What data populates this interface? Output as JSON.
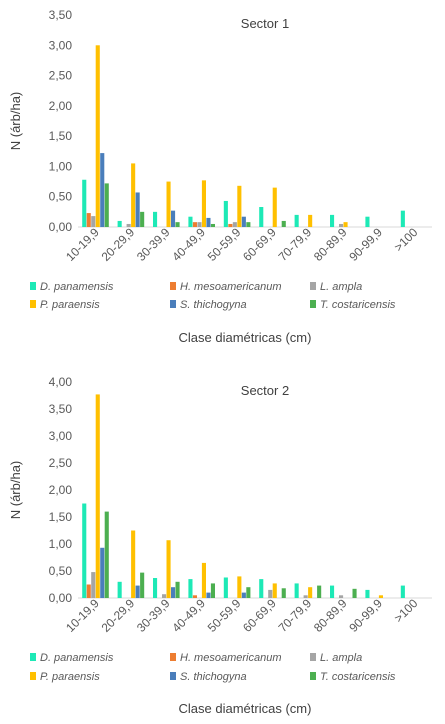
{
  "chart_data": [
    {
      "type": "bar",
      "title": "Sector 1",
      "ylabel": "N (árb/ha)",
      "xlabel": "Clase diamétricas (cm)",
      "categories": [
        "10-19,9",
        "20-29,9",
        "30-39,9",
        "40-49,9",
        "50-59,9",
        "60-69,9",
        "70-79,9",
        "80-89,9",
        "90-99,9",
        ">100"
      ],
      "ylim": [
        0,
        3.5
      ],
      "yticks": [
        "0,00",
        "0,50",
        "1,00",
        "1,50",
        "2,00",
        "2,50",
        "3,00",
        "3,50"
      ],
      "legend_position": "bottom",
      "series": [
        {
          "name": "D. panamensis",
          "color": "#1de9b6",
          "values": [
            0.78,
            0.1,
            0.25,
            0.17,
            0.43,
            0.33,
            0.2,
            0.2,
            0.17,
            0.27
          ]
        },
        {
          "name": "H. mesoamericanum",
          "color": "#ed7d31",
          "values": [
            0.23,
            0.0,
            0.0,
            0.08,
            0.05,
            0.0,
            0.0,
            0.0,
            0.0,
            0.0
          ]
        },
        {
          "name": "L. ampla",
          "color": "#a5a5a5",
          "values": [
            0.18,
            0.05,
            0.0,
            0.08,
            0.08,
            0.0,
            0.0,
            0.05,
            0.0,
            0.0
          ]
        },
        {
          "name": "P. paraensis",
          "color": "#ffc000",
          "values": [
            3.0,
            1.05,
            0.75,
            0.77,
            0.68,
            0.65,
            0.2,
            0.08,
            0.0,
            0.0
          ]
        },
        {
          "name": "S. thichogyna",
          "color": "#4a7ebb",
          "values": [
            1.22,
            0.57,
            0.27,
            0.15,
            0.17,
            0.0,
            0.0,
            0.0,
            0.0,
            0.0
          ]
        },
        {
          "name": "T. costaricensis",
          "color": "#4caf50",
          "values": [
            0.72,
            0.25,
            0.08,
            0.05,
            0.08,
            0.1,
            0.0,
            0.0,
            0.0,
            0.0
          ]
        }
      ]
    },
    {
      "type": "bar",
      "title": "Sector 2",
      "ylabel": "N (árb/ha)",
      "xlabel": "Clase diamétricas (cm)",
      "categories": [
        "10-19,9",
        "20-29,9",
        "30-39,9",
        "40-49,9",
        "50-59,9",
        "60-69,9",
        "70-79,9",
        "80-89,9",
        "90-99,9",
        ">100"
      ],
      "ylim": [
        0,
        4.0
      ],
      "yticks": [
        "0,00",
        "0,50",
        "1,00",
        "1,50",
        "2,00",
        "2,50",
        "3,00",
        "3,50",
        "4,00"
      ],
      "legend_position": "bottom",
      "series": [
        {
          "name": "D. panamensis",
          "color": "#1de9b6",
          "values": [
            1.75,
            0.3,
            0.37,
            0.35,
            0.38,
            0.35,
            0.27,
            0.23,
            0.15,
            0.23
          ]
        },
        {
          "name": "H. mesoamericanum",
          "color": "#ed7d31",
          "values": [
            0.25,
            0.0,
            0.0,
            0.05,
            0.0,
            0.0,
            0.0,
            0.0,
            0.0,
            0.0
          ]
        },
        {
          "name": "L. ampla",
          "color": "#a5a5a5",
          "values": [
            0.48,
            0.0,
            0.07,
            0.0,
            0.0,
            0.15,
            0.05,
            0.05,
            0.0,
            0.0
          ]
        },
        {
          "name": "P. paraensis",
          "color": "#ffc000",
          "values": [
            3.77,
            1.25,
            1.07,
            0.65,
            0.4,
            0.27,
            0.2,
            0.0,
            0.05,
            0.0
          ]
        },
        {
          "name": "S. thichogyna",
          "color": "#4a7ebb",
          "values": [
            0.93,
            0.23,
            0.2,
            0.1,
            0.1,
            0.0,
            0.0,
            0.0,
            0.0,
            0.0
          ]
        },
        {
          "name": "T. costaricensis",
          "color": "#4caf50",
          "values": [
            1.6,
            0.47,
            0.3,
            0.27,
            0.2,
            0.18,
            0.23,
            0.17,
            0.0,
            0.0
          ]
        }
      ]
    }
  ]
}
